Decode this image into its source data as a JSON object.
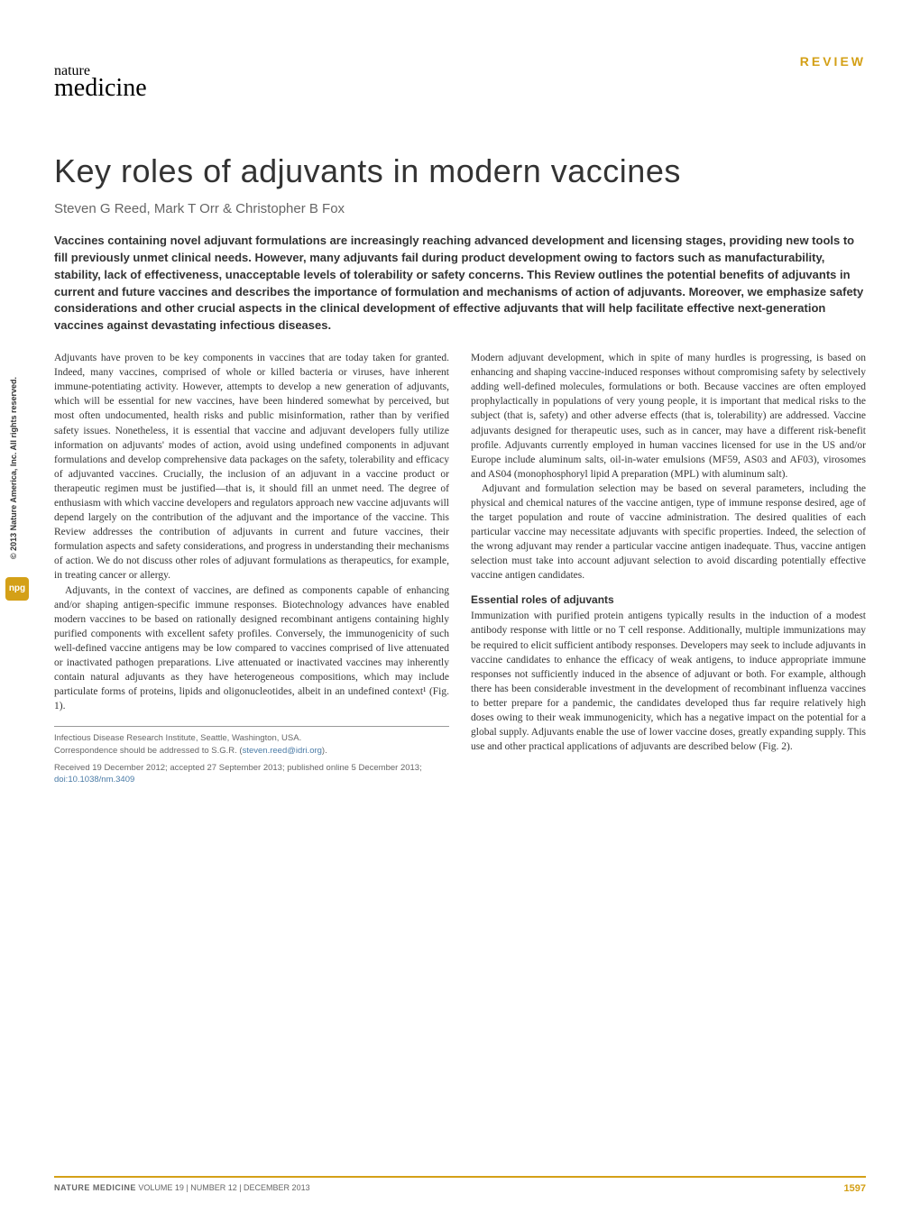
{
  "header": {
    "review_label": "REVIEW",
    "journal_nature": "nature",
    "journal_medicine": "medicine"
  },
  "article": {
    "title": "Key roles of adjuvants in modern vaccines",
    "authors": "Steven G Reed, Mark T Orr & Christopher B Fox",
    "abstract": "Vaccines containing novel adjuvant formulations are increasingly reaching advanced development and licensing stages, providing new tools to fill previously unmet clinical needs. However, many adjuvants fail during product development owing to factors such as manufacturability, stability, lack of effectiveness, unacceptable levels of tolerability or safety concerns. This Review outlines the potential benefits of adjuvants in current and future vaccines and describes the importance of formulation and mechanisms of action of adjuvants. Moreover, we emphasize safety considerations and other crucial aspects in the clinical development of effective adjuvants that will help facilitate effective next-generation vaccines against devastating infectious diseases."
  },
  "body": {
    "para1": "Adjuvants have proven to be key components in vaccines that are today taken for granted. Indeed, many vaccines, comprised of whole or killed bacteria or viruses, have inherent immune-potentiating activity. However, attempts to develop a new generation of adjuvants, which will be essential for new vaccines, have been hindered somewhat by perceived, but most often undocumented, health risks and public misinformation, rather than by verified safety issues. Nonetheless, it is essential that vaccine and adjuvant developers fully utilize information on adjuvants' modes of action, avoid using undefined components in adjuvant formulations and develop comprehensive data packages on the safety, tolerability and efficacy of adjuvanted vaccines. Crucially, the inclusion of an adjuvant in a vaccine product or therapeutic regimen must be justified—that is, it should fill an unmet need. The degree of enthusiasm with which vaccine developers and regulators approach new vaccine adjuvants will depend largely on the contribution of the adjuvant and the importance of the vaccine. This Review addresses the contribution of adjuvants in current and future vaccines, their formulation aspects and safety considerations, and progress in understanding their mechanisms of action. We do not discuss other roles of adjuvant formulations as therapeutics, for example, in treating cancer or allergy.",
    "para2": "Adjuvants, in the context of vaccines, are defined as components capable of enhancing and/or shaping antigen-specific immune responses. Biotechnology advances have enabled modern vaccines to be based on rationally designed recombinant antigens containing highly purified components with excellent safety profiles. Conversely, the immunogenicity of such well-defined vaccine antigens may be low compared to vaccines comprised of live attenuated or inactivated pathogen preparations. Live attenuated or inactivated vaccines may inherently contain natural adjuvants as they have heterogeneous compositions, which may include particulate forms of proteins, lipids and oligonucleotides, albeit in an undefined context¹ (Fig. 1).",
    "para3": "Modern adjuvant development, which in spite of many hurdles is progressing, is based on enhancing and shaping vaccine-induced responses without compromising safety by selectively adding well-defined molecules, formulations or both. Because vaccines are often employed prophylactically in populations of very young people, it is important that medical risks to the subject (that is, safety) and other adverse effects (that is, tolerability) are addressed. Vaccine adjuvants designed for therapeutic uses, such as in cancer, may have a different risk-benefit profile. Adjuvants currently employed in human vaccines licensed for use in the US and/or Europe include aluminum salts, oil-in-water emulsions (MF59, AS03 and AF03), virosomes and AS04 (monophosphoryl lipid A preparation (MPL) with aluminum salt).",
    "para4": "Adjuvant and formulation selection may be based on several parameters, including the physical and chemical natures of the vaccine antigen, type of immune response desired, age of the target population and route of vaccine administration. The desired qualities of each particular vaccine may necessitate adjuvants with specific properties. Indeed, the selection of the wrong adjuvant may render a particular vaccine antigen inadequate. Thus, vaccine antigen selection must take into account adjuvant selection to avoid discarding potentially effective vaccine antigen candidates.",
    "section1_heading": "Essential roles of adjuvants",
    "para5": "Immunization with purified protein antigens typically results in the induction of a modest antibody response with little or no T cell response. Additionally, multiple immunizations may be required to elicit sufficient antibody responses. Developers may seek to include adjuvants in vaccine candidates to enhance the efficacy of weak antigens, to induce appropriate immune responses not sufficiently induced in the absence of adjuvant or both. For example, although there has been considerable investment in the development of recombinant influenza vaccines to better prepare for a pandemic, the candidates developed thus far require relatively high doses owing to their weak immunogenicity, which has a negative impact on the potential for a global supply. Adjuvants enable the use of lower vaccine doses, greatly expanding supply. This use and other practical applications of adjuvants are described below (Fig. 2)."
  },
  "affiliation": {
    "line1": "Infectious Disease Research Institute, Seattle, Washington, USA.",
    "line2_prefix": "Correspondence should be addressed to S.G.R. (",
    "email": "steven.reed@idri.org",
    "line2_suffix": ").",
    "line3_prefix": "Received 19 December 2012; accepted 27 September 2013; published online 5 December 2013; ",
    "doi": "doi:10.1038/nm.3409"
  },
  "sidebar": {
    "copyright": "© 2013 Nature America, Inc. All rights reserved.",
    "npg": "npg"
  },
  "footer": {
    "journal": "NATURE MEDICINE",
    "volume_info": "  VOLUME 19 | NUMBER 12 | DECEMBER 2013",
    "page_number": "1597"
  },
  "colors": {
    "accent": "#d4a017",
    "link": "#4a7ba6",
    "text_body": "#333333",
    "text_muted": "#666666",
    "background": "#ffffff"
  }
}
